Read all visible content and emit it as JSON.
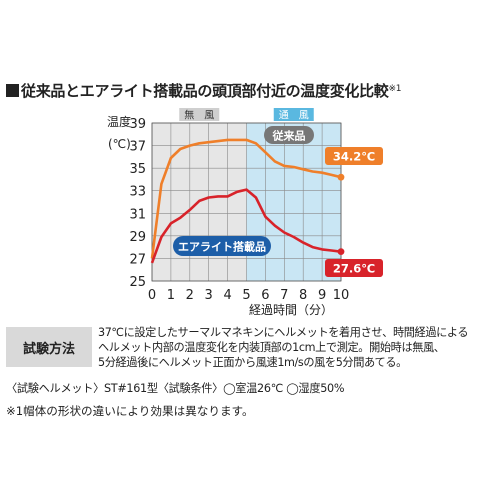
{
  "heading": {
    "title": "従来品とエアライト搭載品の頭頂部付近の温度変化比較",
    "footnote_mark": "※1"
  },
  "chart_data": {
    "type": "line",
    "ylabel": "温度\n(℃)",
    "xlabel": "経過時間（分）",
    "x": [
      0,
      0.5,
      1,
      1.5,
      2,
      2.5,
      3,
      3.5,
      4,
      4.5,
      5,
      5.5,
      6,
      6.5,
      7,
      7.5,
      8,
      8.5,
      9,
      9.5,
      10
    ],
    "xticks": [
      0,
      1,
      2,
      3,
      4,
      5,
      6,
      7,
      8,
      9,
      10
    ],
    "yticks": [
      25,
      27,
      29,
      31,
      33,
      35,
      37,
      39
    ],
    "xlim": [
      0,
      10
    ],
    "ylim": [
      25,
      39
    ],
    "grid": true,
    "phases": [
      {
        "label": "無　風",
        "from": 0,
        "to": 5,
        "color": "#e6e6e6",
        "tab_color": "#cfcfcf",
        "text_color": "#333333"
      },
      {
        "label": "通　風",
        "from": 5,
        "to": 10,
        "color": "#c9e6f4",
        "tab_color": "#5ab8e0",
        "text_color": "#ffffff"
      }
    ],
    "series": [
      {
        "name": "従来品",
        "color": "#ef7f2a",
        "label_bg": "#777777",
        "values": [
          27.0,
          33.6,
          35.9,
          36.7,
          37.0,
          37.2,
          37.3,
          37.4,
          37.5,
          37.5,
          37.5,
          37.2,
          36.4,
          35.6,
          35.2,
          35.1,
          34.9,
          34.7,
          34.6,
          34.4,
          34.2
        ],
        "end_label": "34.2℃"
      },
      {
        "name": "エアライト搭載品",
        "color": "#d8232a",
        "label_bg": "#1d5ea8",
        "values": [
          26.6,
          28.9,
          30.1,
          30.6,
          31.3,
          32.1,
          32.4,
          32.5,
          32.5,
          32.9,
          33.1,
          32.4,
          30.7,
          29.9,
          29.3,
          28.9,
          28.4,
          28.0,
          27.8,
          27.7,
          27.6
        ],
        "end_label": "27.6℃"
      }
    ]
  },
  "test_method": {
    "label": "試験方法",
    "lines": [
      "37℃に設定したサーマルマネキンにヘルメットを着用させ、時間経過による",
      "ヘルメット内部の温度変化を内装頂部の1cm上で測定。開始時は無風、",
      "5分経過後にヘルメット正面から風速1m/sの風を5分間あてる。"
    ]
  },
  "conditions": "〈試験ヘルメット〉ST#161型〈試験条件〉◯室温26℃ ◯湿度50%",
  "note": "※1帽体の形状の違いにより効果は異なります。"
}
